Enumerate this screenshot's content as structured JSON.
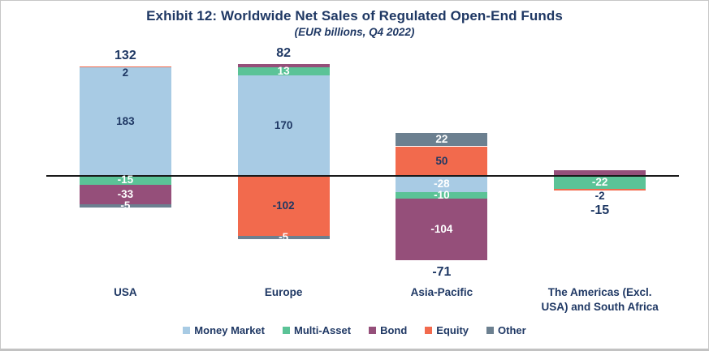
{
  "header": {
    "title": "Exhibit 12: Worldwide Net Sales of Regulated Open-End Funds",
    "subtitle": "(EUR billions, Q4 2022)"
  },
  "colors": {
    "navy": "#1F3864",
    "white": "#FFFFFF",
    "money_market": "#A8CBE4",
    "multi_asset": "#5BC397",
    "bond": "#954F7A",
    "equity": "#F26A4D",
    "other": "#6C8090",
    "axis": "#1a1a1a"
  },
  "legend": [
    {
      "label": "Money Market",
      "color": "money_market"
    },
    {
      "label": "Multi-Asset",
      "color": "multi_asset"
    },
    {
      "label": "Bond",
      "color": "bond"
    },
    {
      "label": "Equity",
      "color": "equity"
    },
    {
      "label": "Other",
      "color": "other"
    }
  ],
  "chart_data": {
    "type": "bar",
    "stacked": true,
    "title": "Exhibit 12: Worldwide Net Sales of Regulated Open-End Funds",
    "subtitle": "(EUR billions, Q4 2022)",
    "unit": "EUR billions",
    "period": "Q4 2022",
    "legend_position": "bottom",
    "y_axis_visible": false,
    "zero_line": true,
    "categories": [
      "USA",
      "Europe",
      "Asia-Pacific",
      "The Americas (Excl. USA) and South Africa"
    ],
    "series": [
      {
        "name": "Money Market",
        "values": [
          183,
          170,
          -28,
          0
        ]
      },
      {
        "name": "Multi-Asset",
        "values": [
          -15,
          13,
          -10,
          -22
        ]
      },
      {
        "name": "Bond",
        "values": [
          -33,
          6,
          -104,
          9
        ]
      },
      {
        "name": "Equity",
        "values": [
          2,
          -102,
          50,
          -2
        ]
      },
      {
        "name": "Other",
        "values": [
          -5,
          -5,
          22,
          0
        ]
      }
    ],
    "totals": [
      132,
      82,
      -71,
      -15
    ],
    "bars": [
      {
        "category_lines": [
          "USA"
        ],
        "total": {
          "text": "132",
          "position": "above"
        },
        "segments": [
          {
            "fund": "Equity",
            "color": "equity",
            "value": 2,
            "label": "2",
            "label_color": "navy",
            "label_placement": "below"
          },
          {
            "fund": "Money Market",
            "color": "money_market",
            "value": 183,
            "label": "183",
            "label_color": "navy",
            "label_placement": "center"
          },
          {
            "fund": "Multi-Asset",
            "color": "multi_asset",
            "value": -15,
            "label": "-15",
            "label_color": "white",
            "label_placement": "center"
          },
          {
            "fund": "Bond",
            "color": "bond",
            "value": -33,
            "label": "-33",
            "label_color": "white",
            "label_placement": "center"
          },
          {
            "fund": "Other",
            "color": "other",
            "value": -5,
            "label": "-5",
            "label_color": "white",
            "label_placement": "center"
          }
        ]
      },
      {
        "category_lines": [
          "Europe"
        ],
        "total": {
          "text": "82",
          "position": "above"
        },
        "segments": [
          {
            "fund": "Bond",
            "color": "bond",
            "value": 6,
            "label": null,
            "label_color": null,
            "label_placement": "center"
          },
          {
            "fund": "Multi-Asset",
            "color": "multi_asset",
            "value": 13,
            "label": "13",
            "label_color": "white",
            "label_placement": "center"
          },
          {
            "fund": "Money Market",
            "color": "money_market",
            "value": 170,
            "label": "170",
            "label_color": "navy",
            "label_placement": "center"
          },
          {
            "fund": "Equity",
            "color": "equity",
            "value": -102,
            "label": "-102",
            "label_color": "navy",
            "label_placement": "center"
          },
          {
            "fund": "Other",
            "color": "other",
            "value": -5,
            "label": "-5",
            "label_color": "white",
            "label_placement": "center"
          }
        ]
      },
      {
        "category_lines": [
          "Asia-Pacific"
        ],
        "total": {
          "text": "-71",
          "position": "below"
        },
        "segments": [
          {
            "fund": "Other",
            "color": "other",
            "value": 22,
            "label": "22",
            "label_color": "white",
            "label_placement": "center"
          },
          {
            "fund": "Equity",
            "color": "equity",
            "value": 50,
            "label": "50",
            "label_color": "navy",
            "label_placement": "center"
          },
          {
            "fund": "Money Market",
            "color": "money_market",
            "value": -28,
            "label": "-28",
            "label_color": "white",
            "label_placement": "center"
          },
          {
            "fund": "Multi-Asset",
            "color": "multi_asset",
            "value": -10,
            "label": "-10",
            "label_color": "white",
            "label_placement": "center"
          },
          {
            "fund": "Bond",
            "color": "bond",
            "value": -104,
            "label": "-104",
            "label_color": "white",
            "label_placement": "center"
          }
        ]
      },
      {
        "category_lines": [
          "The Americas (Excl.",
          "USA) and South Africa"
        ],
        "total": {
          "text": "-15",
          "position": "below"
        },
        "segments": [
          {
            "fund": "Bond",
            "color": "bond",
            "value": 9,
            "label": null,
            "label_color": null,
            "label_placement": "center"
          },
          {
            "fund": "Multi-Asset",
            "color": "multi_asset",
            "value": -22,
            "label": "-22",
            "label_color": "white",
            "label_placement": "center"
          },
          {
            "fund": "Equity",
            "color": "equity",
            "value": -2,
            "label": "-2",
            "label_color": "navy",
            "label_placement": "below"
          }
        ]
      }
    ]
  }
}
